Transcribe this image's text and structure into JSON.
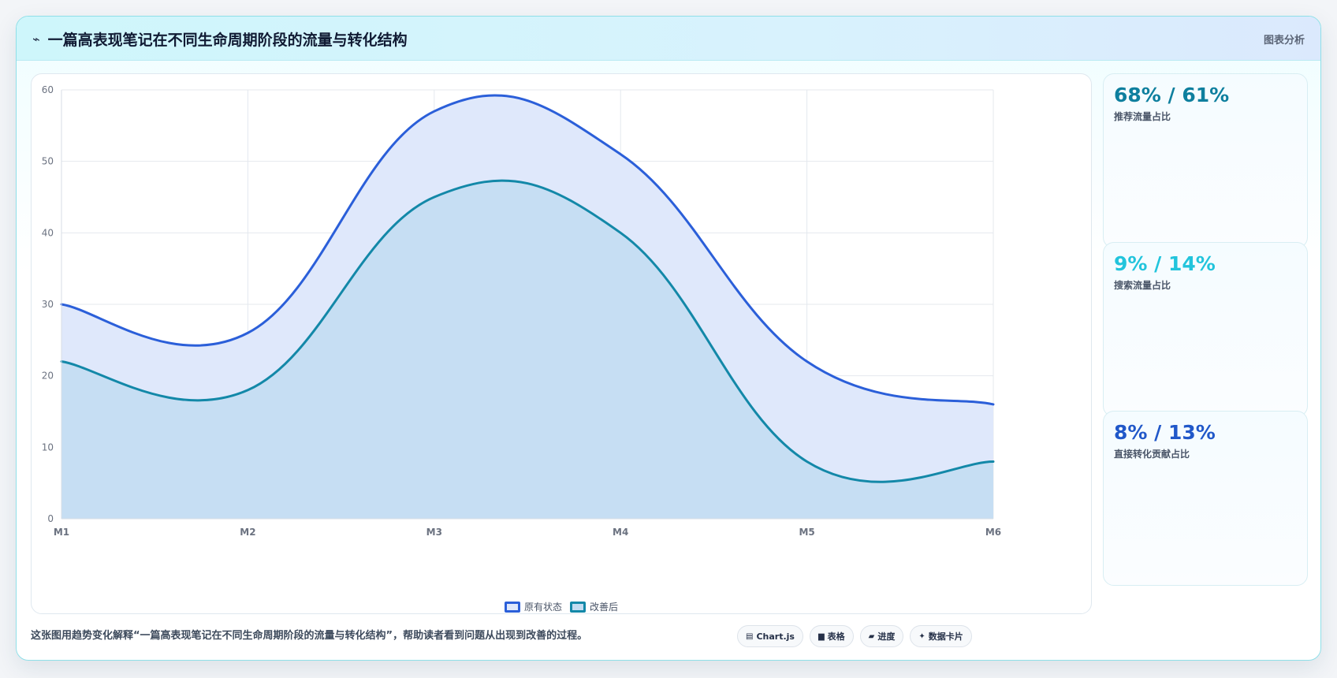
{
  "header": {
    "icon": "wave-icon",
    "title": "一篇高表现笔记在不同生命周期阶段的流量与转化结构",
    "tag": "图表分析"
  },
  "chart_data": {
    "type": "area",
    "categories": [
      "M1",
      "M2",
      "M3",
      "M4",
      "M5",
      "M6"
    ],
    "series": [
      {
        "name": "原有状态",
        "values": [
          30,
          26,
          57,
          51,
          22,
          16
        ],
        "color": "#2b5fd9",
        "fill": "#dfe8fb"
      },
      {
        "name": "改善后",
        "values": [
          22,
          18,
          45,
          40,
          8,
          8
        ],
        "color": "#1388a8",
        "fill": "#c2dcf1"
      }
    ],
    "ylim": [
      0,
      60
    ],
    "yticks": [
      0,
      10,
      20,
      30,
      40,
      50,
      60
    ],
    "grid": true,
    "legend": "bottom",
    "title": "",
    "xlabel": "",
    "ylabel": ""
  },
  "stats": [
    {
      "value": "68% / 61%",
      "label": "推荐流量占比",
      "color": "#0e7f9e"
    },
    {
      "value": "9% / 14%",
      "label": "搜索流量占比",
      "color": "#22c4dc"
    },
    {
      "value": "8% / 13%",
      "label": "直接转化贡献占比",
      "color": "#2158c9"
    }
  ],
  "footer": {
    "text": "这张图用趋势变化解释“一篇高表现笔记在不同生命周期阶段的流量与转化结构”，帮助读者看到问题从出现到改善的过程。",
    "chips": [
      {
        "icon": "chart-icon",
        "glyph": "▤",
        "label": "Chart.js"
      },
      {
        "icon": "table-icon",
        "glyph": "▆",
        "label": "表格"
      },
      {
        "icon": "progress-icon",
        "glyph": "▰",
        "label": "进度"
      },
      {
        "icon": "sparkle-icon",
        "glyph": "✦",
        "label": "数据卡片"
      }
    ]
  }
}
